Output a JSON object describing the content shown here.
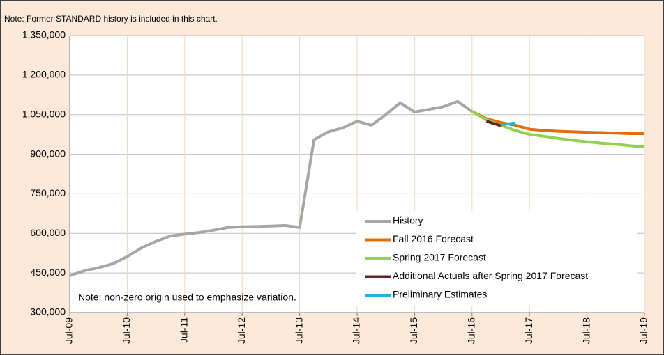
{
  "chart_data": {
    "type": "line",
    "title": "Note: Former STANDARD history is included in this chart.",
    "annotation": "Note: non-zero origin used to emphasize variation.",
    "categories": [
      "Jul-09",
      null,
      null,
      null,
      "Jul-10",
      null,
      null,
      null,
      "Jul-11",
      null,
      null,
      null,
      "Jul-12",
      null,
      null,
      null,
      "Jul-13",
      null,
      null,
      null,
      "Jul-14",
      null,
      null,
      null,
      "Jul-15",
      null,
      null,
      null,
      "Jul-16",
      null,
      null,
      null,
      "Jul-17",
      null,
      null,
      null,
      "Jul-18",
      null,
      null,
      null,
      "Jul-19"
    ],
    "series": [
      {
        "name": "History",
        "color": "#a6a6a6",
        "values": [
          440000,
          458000,
          470000,
          485000,
          512000,
          545000,
          570000,
          590000,
          597000,
          603000,
          612000,
          622000,
          625000,
          626000,
          628000,
          630000,
          622000,
          955000,
          985000,
          1000000,
          1025000,
          1010000,
          1050000,
          1095000,
          1060000,
          1070000,
          1080000,
          1100000,
          1062000,
          null,
          null,
          null,
          null,
          null,
          null,
          null,
          null,
          null,
          null,
          null,
          null
        ]
      },
      {
        "name": "Fall 2016 Forecast",
        "color": "#e46c0a",
        "values": [
          null,
          null,
          null,
          null,
          null,
          null,
          null,
          null,
          null,
          null,
          null,
          null,
          null,
          null,
          null,
          null,
          null,
          null,
          null,
          null,
          null,
          null,
          null,
          null,
          null,
          null,
          null,
          null,
          1062000,
          1035000,
          1020000,
          1010000,
          995000,
          990000,
          987000,
          985000,
          983000,
          982000,
          980000,
          978000,
          978000
        ]
      },
      {
        "name": "Spring 2017 Forecast",
        "color": "#92d050",
        "values": [
          null,
          null,
          null,
          null,
          null,
          null,
          null,
          null,
          null,
          null,
          null,
          null,
          null,
          null,
          null,
          null,
          null,
          null,
          null,
          null,
          null,
          null,
          null,
          null,
          null,
          null,
          null,
          null,
          1062000,
          1030000,
          1010000,
          990000,
          975000,
          968000,
          960000,
          953000,
          947000,
          942000,
          938000,
          932000,
          928000
        ]
      },
      {
        "name": "Additional Actuals after Spring 2017 Forecast",
        "color": "#632523",
        "values": [
          null,
          null,
          null,
          null,
          null,
          null,
          null,
          null,
          null,
          null,
          null,
          null,
          null,
          null,
          null,
          null,
          null,
          null,
          null,
          null,
          null,
          null,
          null,
          null,
          null,
          null,
          null,
          null,
          null,
          1025000,
          1008000,
          null,
          null,
          null,
          null,
          null,
          null,
          null,
          null,
          null,
          null
        ]
      },
      {
        "name": "Preliminary Estimates",
        "color": "#1fb0e8",
        "values": [
          null,
          null,
          null,
          null,
          null,
          null,
          null,
          null,
          null,
          null,
          null,
          null,
          null,
          null,
          null,
          null,
          null,
          null,
          null,
          null,
          null,
          null,
          null,
          null,
          null,
          null,
          null,
          null,
          null,
          null,
          1012000,
          1018000,
          null,
          null,
          null,
          null,
          null,
          null,
          null,
          null,
          null
        ]
      }
    ],
    "ylim": [
      300000,
      1350000
    ],
    "yticks": [
      {
        "value": 300000,
        "label": "300,000"
      },
      {
        "value": 450000,
        "label": "450,000"
      },
      {
        "value": 600000,
        "label": "600,000"
      },
      {
        "value": 750000,
        "label": "750,000"
      },
      {
        "value": 900000,
        "label": "900,000"
      },
      {
        "value": 1050000,
        "label": "1,050,000"
      },
      {
        "value": 1200000,
        "label": "1,200,000"
      },
      {
        "value": 1350000,
        "label": "1,350,000"
      }
    ],
    "grid": true
  }
}
